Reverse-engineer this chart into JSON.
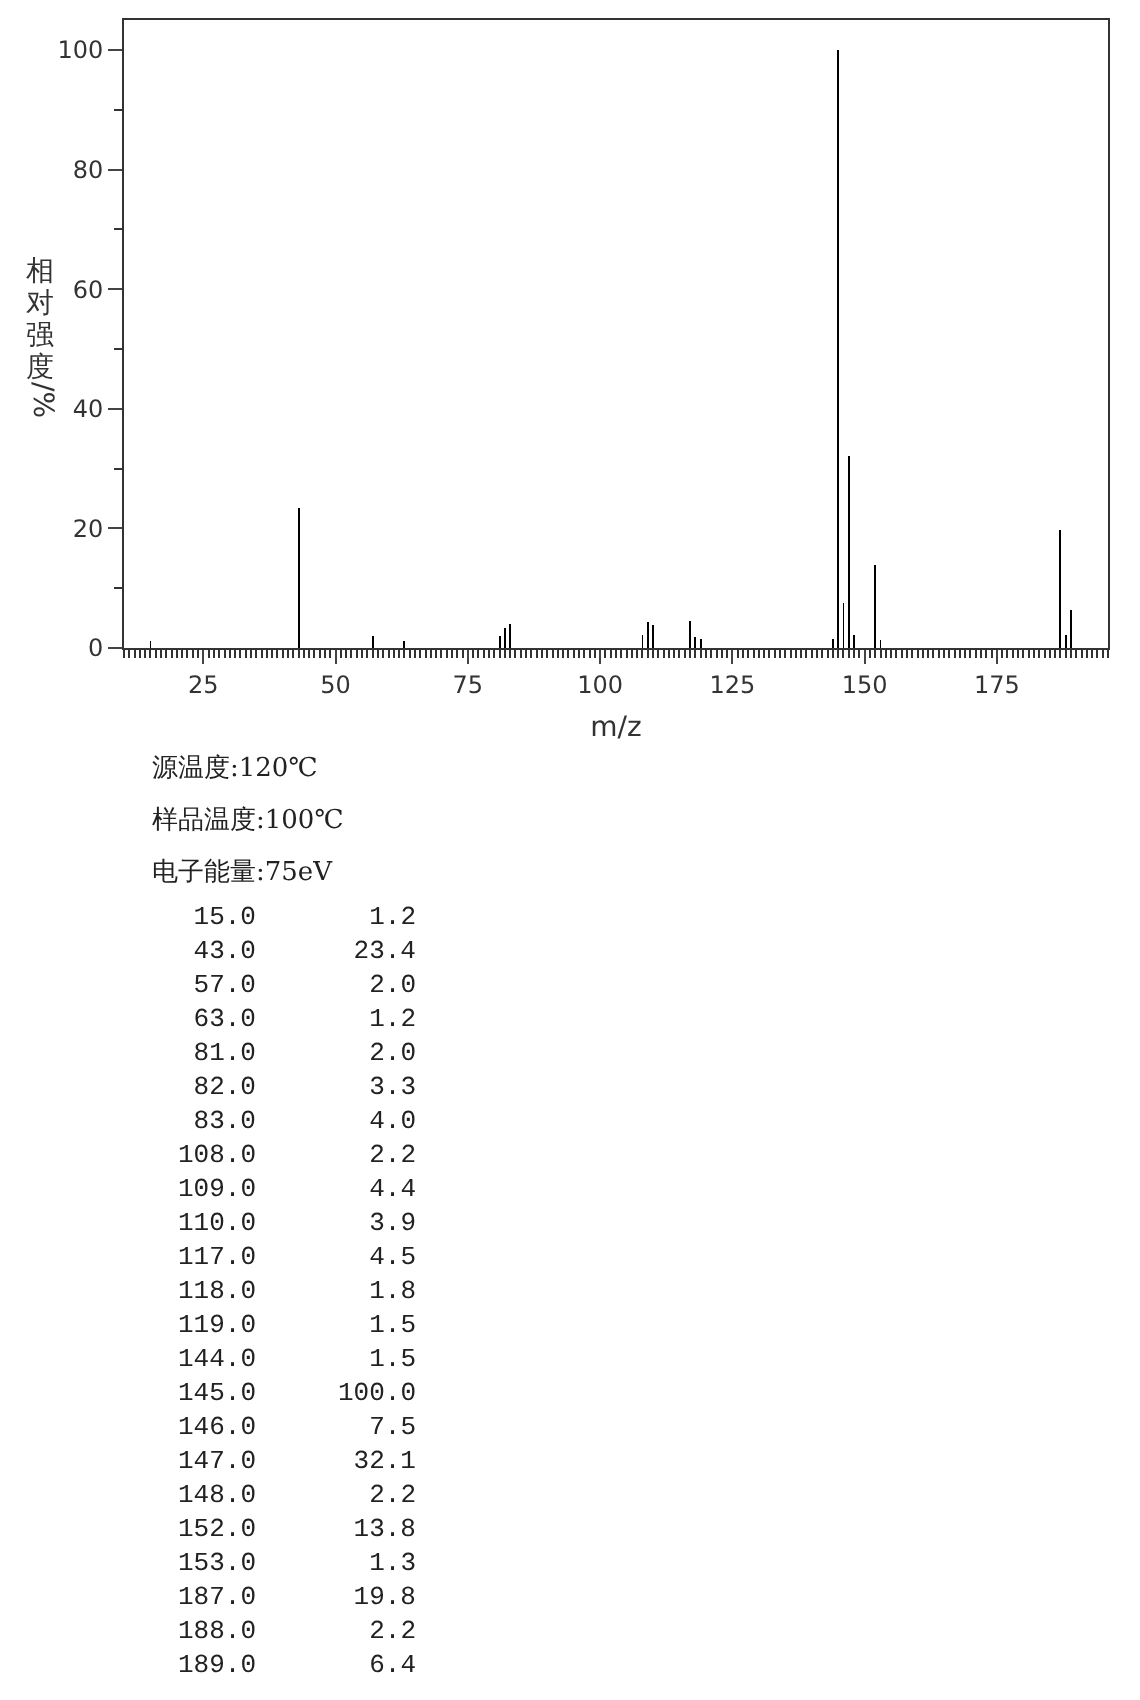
{
  "chart_data": {
    "type": "bar",
    "xlabel": "m/z",
    "ylabel": "相对强度/%",
    "x": [
      15.0,
      43.0,
      57.0,
      63.0,
      81.0,
      82.0,
      83.0,
      108.0,
      109.0,
      110.0,
      117.0,
      118.0,
      119.0,
      144.0,
      145.0,
      146.0,
      147.0,
      148.0,
      152.0,
      153.0,
      187.0,
      188.0,
      189.0
    ],
    "values": [
      1.2,
      23.4,
      2.0,
      1.2,
      2.0,
      3.3,
      4.0,
      2.2,
      4.4,
      3.9,
      4.5,
      1.8,
      1.5,
      1.5,
      100.0,
      7.5,
      32.1,
      2.2,
      13.8,
      1.3,
      19.8,
      2.2,
      6.4
    ],
    "color": "#000000",
    "xlim": [
      10,
      196
    ],
    "xticks": [
      25,
      50,
      75,
      100,
      125,
      150,
      175
    ],
    "ylim": [
      0,
      105
    ],
    "yticks": [
      0,
      20,
      40,
      60,
      80,
      100
    ],
    "grid": false,
    "annotations": [
      "源温度:120℃",
      "样品温度:100℃",
      "电子能量:75eV",
      "15.0",
      "1.2",
      "43.0",
      "23.4",
      "57.0",
      "2.0",
      "63.0",
      "1.2",
      "81.0",
      "2.0",
      "82.0",
      "3.3",
      "83.0",
      "4.0",
      "108.0",
      "2.2",
      "109.0",
      "4.4",
      "110.0",
      "3.9",
      "117.0",
      "4.5",
      "118.0",
      "1.8",
      "119.0",
      "1.5",
      "144.0",
      "1.5",
      "145.0",
      "100.0",
      "146.0",
      "7.5",
      "147.0",
      "32.1",
      "148.0",
      "2.2",
      "152.0",
      "13.8",
      "153.0",
      "1.3",
      "187.0",
      "19.8",
      "188.0",
      "2.2",
      "189.0",
      "6.4"
    ]
  }
}
